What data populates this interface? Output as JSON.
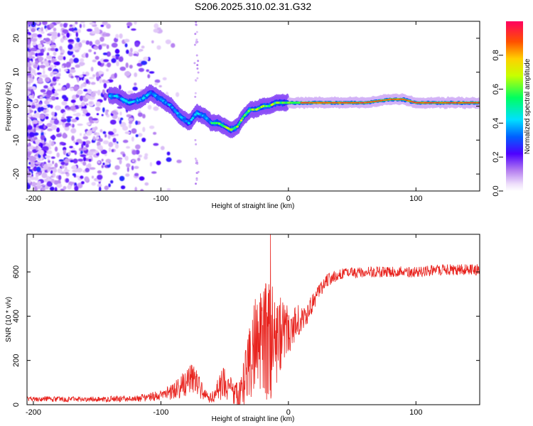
{
  "title": "S206.2025.310.02.31.G32",
  "chart_data": [
    {
      "type": "heatmap",
      "name": "spectrogram",
      "xlabel": "Height of straight line (km)",
      "ylabel": "Frequency (Hz)",
      "xlim": [
        -205,
        150
      ],
      "ylim": [
        -25,
        25
      ],
      "xticks": [
        -200,
        -100,
        0,
        100
      ],
      "yticks": [
        -20,
        -10,
        0,
        10,
        20
      ],
      "ridge": {
        "x": [
          -135,
          -125,
          -115,
          -108,
          -100,
          -92,
          -85,
          -78,
          -72,
          -66,
          -60,
          -55,
          -50,
          -45,
          -40,
          -35,
          -30,
          -25,
          -20,
          -15,
          -10,
          -5,
          0,
          5,
          10,
          20,
          40,
          60,
          80,
          90,
          100,
          120,
          150
        ],
        "frequency": [
          3,
          1,
          2,
          4,
          2,
          0,
          -3,
          -5,
          -2,
          -3,
          -5,
          -5,
          -6,
          -7,
          -6,
          -3,
          -1,
          -1,
          0,
          0,
          1,
          1,
          1,
          1,
          1,
          1,
          1,
          1,
          2,
          2,
          1,
          1,
          1
        ]
      },
      "colorbar": {
        "label": "Normalized spectral amplitude",
        "ticks": [
          0.0,
          0.2,
          0.4,
          0.6,
          0.8
        ],
        "tick_labels": [
          "0.0",
          "0.2",
          "0.4",
          "0.6",
          "0.8"
        ],
        "range": [
          0,
          1
        ]
      }
    },
    {
      "type": "line",
      "name": "snr",
      "xlabel": "Height of straight line (km)",
      "ylabel": "SNR (10 * v/v)",
      "xlim": [
        -205,
        150
      ],
      "ylim": [
        0,
        770
      ],
      "xticks": [
        -200,
        -100,
        0,
        100
      ],
      "yticks": [
        0,
        200,
        400,
        600
      ],
      "color": "#e8231e",
      "envelope": {
        "x": [
          -205,
          -150,
          -120,
          -100,
          -90,
          -80,
          -75,
          -70,
          -65,
          -60,
          -55,
          -50,
          -45,
          -40,
          -35,
          -30,
          -25,
          -20,
          -15,
          -10,
          -5,
          0,
          5,
          10,
          15,
          20,
          25,
          30,
          40,
          60,
          80,
          100,
          120,
          150
        ],
        "mean": [
          25,
          25,
          28,
          40,
          60,
          100,
          120,
          80,
          40,
          30,
          60,
          110,
          70,
          50,
          110,
          180,
          280,
          300,
          290,
          300,
          320,
          340,
          360,
          390,
          420,
          470,
          520,
          560,
          590,
          600,
          600,
          600,
          610,
          610
        ],
        "noise": [
          12,
          12,
          15,
          25,
          40,
          60,
          70,
          50,
          25,
          25,
          60,
          80,
          60,
          60,
          120,
          180,
          230,
          260,
          280,
          220,
          160,
          120,
          90,
          70,
          50,
          40,
          30,
          30,
          25,
          25,
          25,
          25,
          25,
          25
        ]
      },
      "peak": {
        "x": -14,
        "y": 770
      }
    }
  ]
}
